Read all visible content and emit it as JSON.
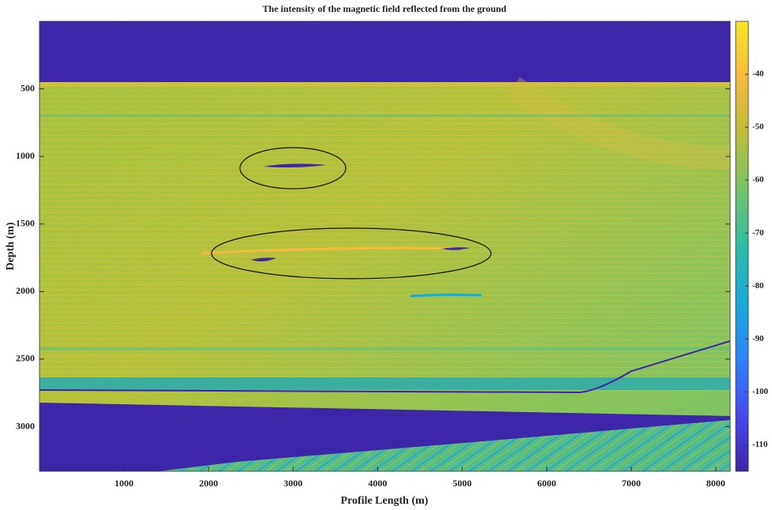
{
  "chart_data": {
    "type": "heatmap",
    "title": "The intensity of the magnetic field reflected from the ground",
    "xlabel": "Profile Length (m)",
    "ylabel": "Depth (m)",
    "xlim": [
      0,
      8170
    ],
    "xticks": [
      1000,
      2000,
      3000,
      4000,
      5000,
      6000,
      7000,
      8000
    ],
    "ylim": [
      0,
      3330
    ],
    "y_inverted": true,
    "yticks": [
      500,
      1000,
      1500,
      2000,
      2500,
      3000
    ],
    "clim": [
      -115,
      -30
    ],
    "cticks": [
      -40,
      -50,
      -60,
      -70,
      -80,
      -90,
      -100,
      -110
    ],
    "colormap": [
      "#3e26a8",
      "#4748f0",
      "#2d85f8",
      "#1aa9d9",
      "#2cbba4",
      "#76c46a",
      "#bcbd3b",
      "#f5b93d",
      "#f9e725"
    ]
  }
}
